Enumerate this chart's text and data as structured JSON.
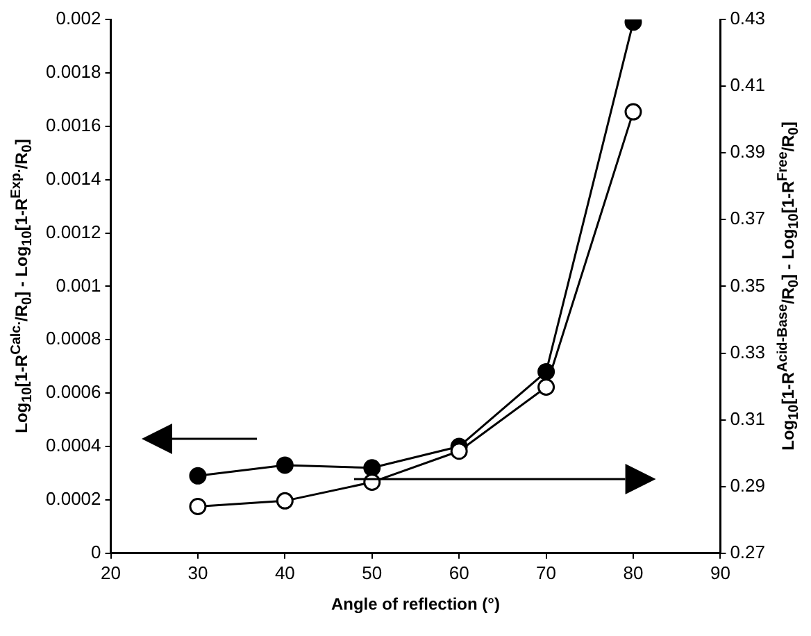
{
  "chart_data": {
    "type": "line",
    "xlabel": "Angle of reflection (°)",
    "ylabel": "Log$_{10}$[1-R$^{Calc.}$/R$_{0}$] - Log$_{10}$[1-R$^{Exp.}$/R$_{0}$]",
    "y2label": "Log$_{10}$[1-R$^{Acid-Base}$/R$_{0}$] - Log$_{10}$[1-R$^{Free}$/R$_{0}$]",
    "x": [
      30,
      40,
      50,
      60,
      70,
      80
    ],
    "series": [
      {
        "color": "#000000",
        "values": [
          0.00029,
          0.00033,
          0.00032,
          0.0004,
          0.00068,
          0.00199
        ]
      },
      {
        "color": "#000000",
        "axis": "y2",
        "values": [
          0.284,
          0.2857,
          0.2913,
          0.3006,
          0.3198,
          0.4023
        ]
      }
    ],
    "xlim": [
      20,
      90
    ],
    "xticks": [
      20,
      30,
      40,
      50,
      60,
      70,
      80,
      90
    ],
    "ylim": [
      0,
      0.002
    ],
    "yticks": [
      0,
      0.0002,
      0.0004,
      0.0006,
      0.0008,
      0.001,
      0.0012,
      0.0014,
      0.0016,
      0.0018,
      0.002
    ],
    "y2lim": [
      0.27,
      0.43
    ],
    "y2ticks": [
      0.27,
      0.29,
      0.31,
      0.33,
      0.35,
      0.37,
      0.39,
      0.41,
      0.43
    ],
    "grid": false,
    "legend": false,
    "marker": "circle",
    "line_style": "solid"
  }
}
